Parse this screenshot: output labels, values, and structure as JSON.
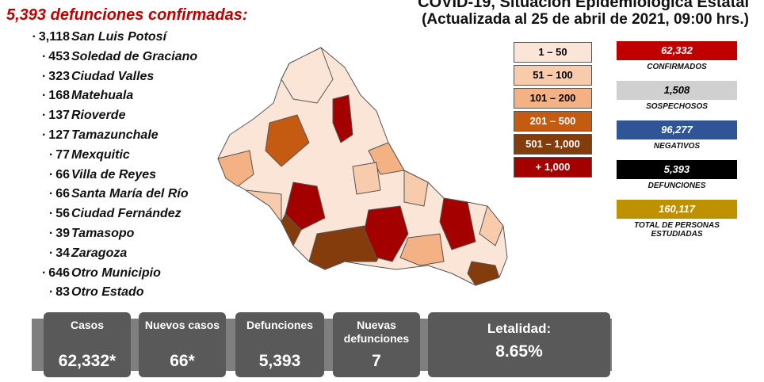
{
  "header": {
    "title": "COVID-19, Situación Epidemiológica Estatal",
    "subtitle": "(Actualizada al 25 de abril de 2021, 09:00 hrs.)"
  },
  "deaths_list": {
    "title": "5,393 defunciones confirmadas:",
    "items": [
      {
        "count": "3,118",
        "place": "San Luis Potosí"
      },
      {
        "count": "453",
        "place": "Soledad de Graciano"
      },
      {
        "count": "323",
        "place": "Ciudad Valles"
      },
      {
        "count": "168",
        "place": "Matehuala"
      },
      {
        "count": "137",
        "place": "Rioverde"
      },
      {
        "count": "127",
        "place": "Tamazunchale"
      },
      {
        "count": "77",
        "place": "Mexquitic"
      },
      {
        "count": "66",
        "place": "Villa de Reyes"
      },
      {
        "count": "66",
        "place": "Santa María del Río"
      },
      {
        "count": "56",
        "place": "Ciudad Fernández"
      },
      {
        "count": "39",
        "place": "Tamasopo"
      },
      {
        "count": "34",
        "place": "Zaragoza"
      },
      {
        "count": "646",
        "place": "Otro Municipio"
      },
      {
        "count": "83",
        "place": "Otro Estado"
      }
    ]
  },
  "legend": [
    {
      "label": "1 – 50",
      "color": "#fbe5d6",
      "text": "#000"
    },
    {
      "label": "51 – 100",
      "color": "#f8cbad",
      "text": "#000"
    },
    {
      "label": "101 – 200",
      "color": "#f4b183",
      "text": "#000"
    },
    {
      "label": "201 – 500",
      "color": "#c55a11",
      "text": "#fff"
    },
    {
      "label": "501 – 1,000",
      "color": "#843c0c",
      "text": "#fff"
    },
    {
      "label": "+ 1,000",
      "color": "#a50000",
      "text": "#fff"
    }
  ],
  "stats": [
    {
      "value": "62,332",
      "label": "CONFIRMADOS",
      "color": "#c00000",
      "text": "#fff"
    },
    {
      "value": "1,508",
      "label": "SOSPECHOSOS",
      "color": "#d0d0d0",
      "text": "#000"
    },
    {
      "value": "96,277",
      "label": "NEGATIVOS",
      "color": "#2f5597",
      "text": "#fff"
    },
    {
      "value": "5,393",
      "label": "DEFUNCIONES",
      "color": "#000000",
      "text": "#fff"
    },
    {
      "value": "160,117",
      "label": "TOTAL DE PERSONAS ESTUDIADAS",
      "color": "#bf9000",
      "text": "#fff"
    }
  ],
  "summary": [
    {
      "label": "Casos",
      "value": "62,332*"
    },
    {
      "label": "Nuevos casos",
      "value": "66*"
    },
    {
      "label": "Defunciones",
      "value": "5,393"
    },
    {
      "label": "Nuevas defunciones",
      "value": "7"
    },
    {
      "label": "Letalidad:",
      "value": "8.65%"
    }
  ]
}
